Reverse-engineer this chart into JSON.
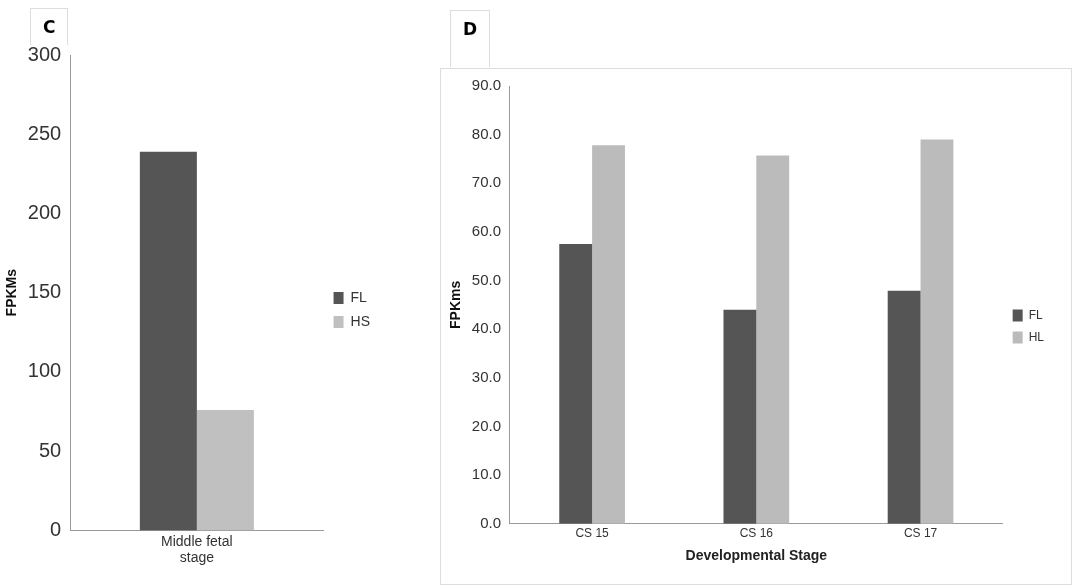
{
  "chart_data": [
    {
      "type": "bar",
      "title": "C",
      "ylabel": "FPKMs",
      "categories": [
        "Middle fetal stage"
      ],
      "series": [
        {
          "name": "FL",
          "color": "#555555",
          "values": [
            239
          ]
        },
        {
          "name": "HS",
          "color": "#c0c0c0",
          "values": [
            76
          ]
        }
      ],
      "ylim": [
        0,
        300
      ],
      "yticks": [
        0,
        50,
        100,
        150,
        200,
        250,
        300
      ],
      "grid": false,
      "legend": "right"
    },
    {
      "type": "bar",
      "title": "D",
      "ylabel": "FPKms",
      "xlabel": "Developmental Stage",
      "categories": [
        "CS 15",
        "CS 16",
        "CS 17"
      ],
      "series": [
        {
          "name": "FL",
          "color": "#555555",
          "values": [
            57.5,
            44.0,
            47.9
          ]
        },
        {
          "name": "HL",
          "color": "#bbbbbb",
          "values": [
            77.8,
            75.7,
            79.0
          ]
        }
      ],
      "ylim": [
        0,
        90
      ],
      "yticks": [
        {
          "value": 0,
          "label": "0.0"
        },
        {
          "value": 10,
          "label": "10.0"
        },
        {
          "value": 20,
          "label": "20.0"
        },
        {
          "value": 30,
          "label": "30.0"
        },
        {
          "value": 40,
          "label": "40.0"
        },
        {
          "value": 50,
          "label": "50.0"
        },
        {
          "value": 60,
          "label": "60.0"
        },
        {
          "value": 70,
          "label": "70.0"
        },
        {
          "value": 80,
          "label": "80.0"
        },
        {
          "value": 90,
          "label": "90.0"
        }
      ],
      "grid": false,
      "legend": "right"
    }
  ]
}
